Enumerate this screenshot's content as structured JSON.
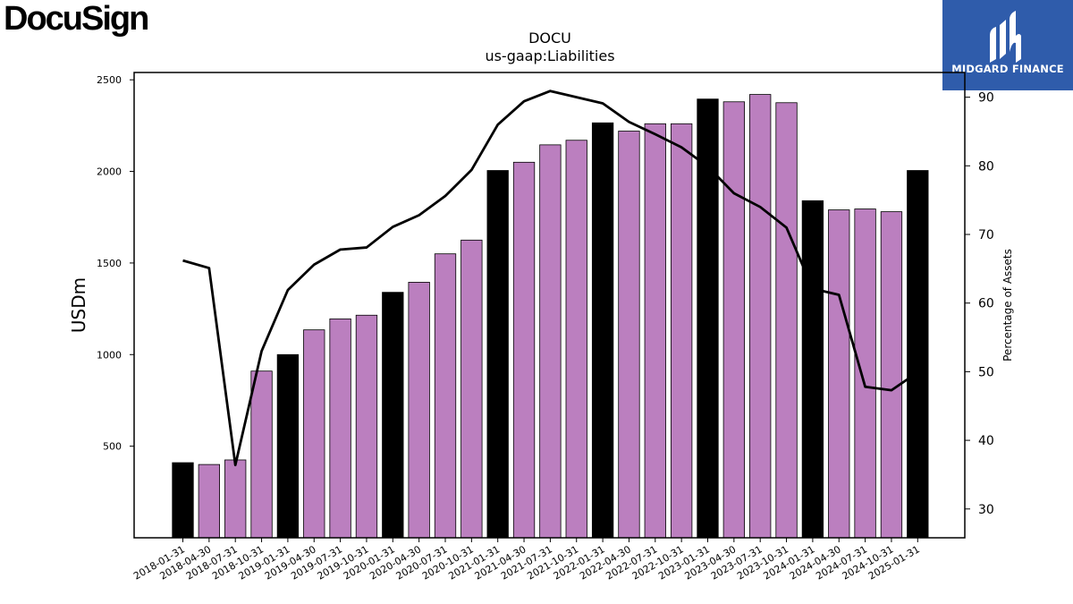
{
  "logos": {
    "brand": "DocuSign",
    "partner": "MIDGARD FINANCE"
  },
  "chart_data": {
    "type": "bar",
    "title": "DOCU",
    "subtitle": "us-gaap:Liabilities",
    "ylabel": "USDm",
    "y2label": "Percentage of Assets",
    "ylim": [
      0,
      2540
    ],
    "y2lim": [
      25.8,
      93.6
    ],
    "yticks": [
      500,
      1000,
      1500,
      2000,
      2500
    ],
    "y2ticks": [
      30,
      40,
      50,
      60,
      70,
      80,
      90
    ],
    "grid": false,
    "colors": {
      "highlight": "#000000",
      "normal": "#bb7fbf",
      "line": "#000000"
    },
    "categories": [
      "2018-01-31",
      "2018-04-30",
      "2018-07-31",
      "2018-10-31",
      "2019-01-31",
      "2019-04-30",
      "2019-07-31",
      "2019-10-31",
      "2020-01-31",
      "2020-04-30",
      "2020-07-31",
      "2020-10-31",
      "2021-01-31",
      "2021-04-30",
      "2021-07-31",
      "2021-10-31",
      "2022-01-31",
      "2022-04-30",
      "2022-07-31",
      "2022-10-31",
      "2023-01-31",
      "2023-04-30",
      "2023-07-31",
      "2023-10-31",
      "2024-01-31",
      "2024-04-30",
      "2024-07-31",
      "2024-10-31",
      "2025-01-31"
    ],
    "series": [
      {
        "values": [
          410,
          400,
          425,
          910,
          1000,
          1135,
          1195,
          1215,
          1340,
          1395,
          1550,
          1625,
          2005,
          2050,
          2145,
          2170,
          2265,
          2220,
          2260,
          2260,
          2395,
          2380,
          2420,
          2375,
          1840,
          1790,
          1795,
          1780,
          2005
        ],
        "highlight": [
          true,
          false,
          false,
          false,
          true,
          false,
          false,
          false,
          true,
          false,
          false,
          false,
          true,
          false,
          false,
          false,
          true,
          false,
          false,
          false,
          true,
          false,
          false,
          false,
          true,
          false,
          false,
          false,
          true
        ]
      },
      {
        "axis": "right",
        "values": [
          66.2,
          65.1,
          36.4,
          53.0,
          61.9,
          65.6,
          67.8,
          68.1,
          71.1,
          72.8,
          75.6,
          79.4,
          86.0,
          89.4,
          90.9,
          90.0,
          89.1,
          86.4,
          84.6,
          82.7,
          79.9,
          76.0,
          74.0,
          71.0,
          62.1,
          61.2,
          47.8,
          47.3,
          49.9
        ]
      }
    ]
  }
}
